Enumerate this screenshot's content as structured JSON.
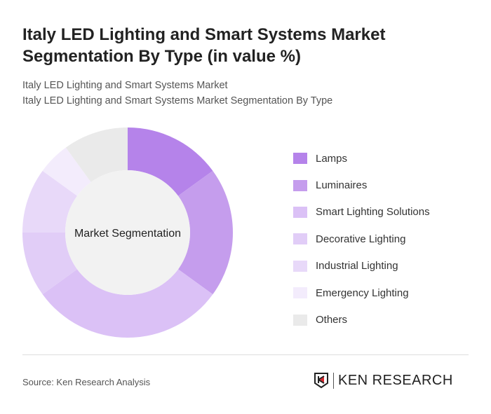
{
  "title": "Italy LED Lighting and Smart Systems Market Segmentation By Type (in value %)",
  "subtitle1": "Italy LED Lighting and Smart Systems Market",
  "subtitle2": "Italy LED Lighting and Smart Systems Market Segmentation By Type",
  "source": "Source: Ken Research Analysis",
  "logo_text": "KEN RESEARCH",
  "chart_data": {
    "type": "pie",
    "donut": true,
    "center_label": "Market Segmentation",
    "legend_position": "right",
    "categories": [
      "Lamps",
      "Luminaires",
      "Smart Lighting Solutions",
      "Decorative Lighting",
      "Industrial Lighting",
      "Emergency Lighting",
      "Others"
    ],
    "values": [
      15,
      20,
      30,
      10,
      10,
      5,
      10
    ],
    "colors": [
      "#b583ea",
      "#c59ded",
      "#dbc1f6",
      "#e1cdf7",
      "#e8d9f9",
      "#f3ecfc",
      "#eaeaea"
    ]
  }
}
